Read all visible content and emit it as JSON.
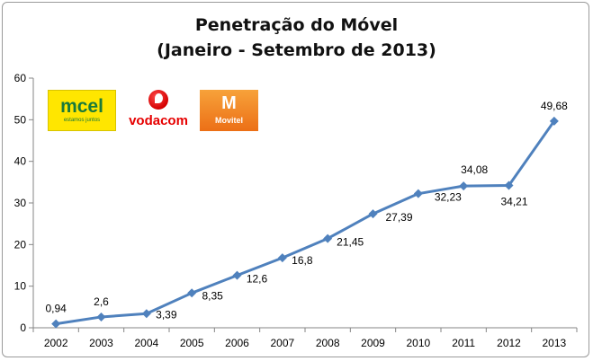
{
  "chart_data": {
    "type": "line",
    "title": "Penetração do Móvel",
    "subtitle": "(Janeiro - Setembro de 2013)",
    "xlabel": "",
    "ylabel": "",
    "categories": [
      "2002",
      "2003",
      "2004",
      "2005",
      "2006",
      "2007",
      "2008",
      "2009",
      "2010",
      "2011",
      "2012",
      "2013"
    ],
    "series": [
      {
        "values": [
          0.94,
          2.6,
          3.39,
          8.35,
          12.6,
          16.8,
          21.45,
          27.39,
          32.23,
          34.08,
          34.21,
          49.68
        ],
        "labels": [
          "0,94",
          "2,6",
          "3,39",
          "8,35",
          "12,6",
          "16,8",
          "21,45",
          "27,39",
          "32,23",
          "34,08",
          "34,21",
          "49,68"
        ],
        "color": "#4f81bd"
      }
    ],
    "ylim": [
      0,
      60
    ],
    "yticks": [
      0,
      10,
      20,
      30,
      40,
      50,
      60
    ],
    "grid": false,
    "legend": "none"
  },
  "logos": {
    "mcel": {
      "name": "mcel",
      "tagline": "estamos juntos",
      "color": "#ffe600"
    },
    "vodacom": {
      "name": "vodacom",
      "color": "#e60000"
    },
    "movitel": {
      "name": "Movitel",
      "color": "#ef7d1c"
    }
  }
}
